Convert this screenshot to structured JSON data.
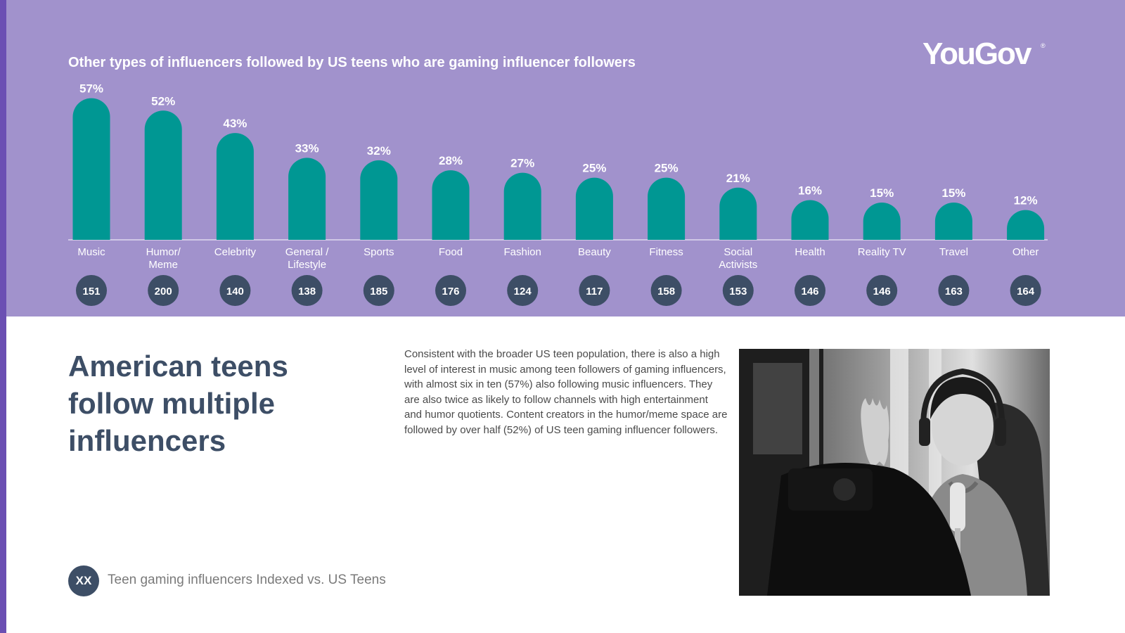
{
  "logo": {
    "text": "YouGov",
    "reg": "®"
  },
  "chart_data": {
    "type": "bar",
    "title": "Other types of influencers followed by US teens who are gaming influencer followers",
    "categories": [
      "Music",
      "Humor/\nMeme",
      "Celebrity",
      "General /\nLifestyle",
      "Sports",
      "Food",
      "Fashion",
      "Beauty",
      "Fitness",
      "Social\nActivists",
      "Health",
      "Reality TV",
      "Travel",
      "Other"
    ],
    "values": [
      57,
      52,
      43,
      33,
      32,
      28,
      27,
      25,
      25,
      21,
      16,
      15,
      15,
      12
    ],
    "value_labels": [
      "57%",
      "52%",
      "43%",
      "33%",
      "32%",
      "28%",
      "27%",
      "25%",
      "25%",
      "21%",
      "16%",
      "15%",
      "15%",
      "12%"
    ],
    "index_values": [
      151,
      200,
      140,
      138,
      185,
      176,
      124,
      117,
      158,
      153,
      146,
      146,
      163,
      164
    ],
    "ylim": [
      0,
      60
    ],
    "grid": false,
    "colors": {
      "bar": "#009793",
      "index_circle": "#3d4e66",
      "panel": "#a192cc"
    }
  },
  "heading": "American teens follow multiple influencers",
  "body": "Consistent with the broader US teen population, there is also a high level of interest in music among teen followers of gaming influencers, with almost six in ten (57%) also following music influencers. They are also twice as likely to follow channels with high entertainment and humor quotients. Content creators in the humor/meme space are followed by over half (52%) of US teen gaming influencer followers.",
  "legend": {
    "circle_text": "XX",
    "text": "Teen gaming influencers Indexed vs. US Teens"
  },
  "colors": {
    "accent_stripe": "#6b4fb3",
    "heading": "#3d4e66"
  }
}
